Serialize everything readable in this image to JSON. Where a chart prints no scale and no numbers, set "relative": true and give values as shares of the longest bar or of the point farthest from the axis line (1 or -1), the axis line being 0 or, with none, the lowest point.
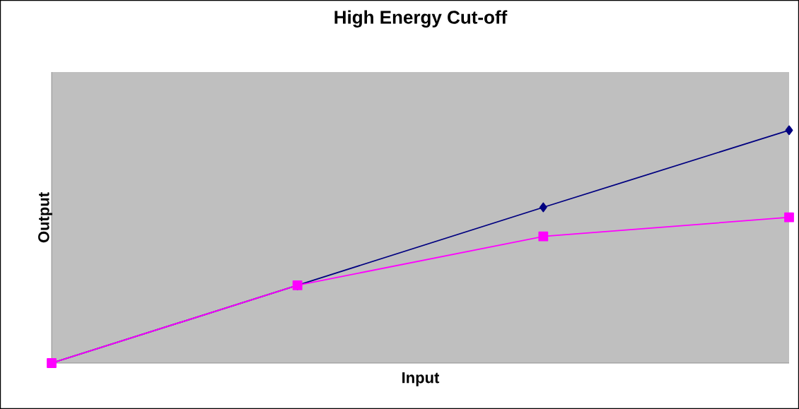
{
  "chart_data": {
    "type": "line",
    "title": "High Energy Cut-off",
    "xlabel": "Input",
    "ylabel": "Output",
    "relative": true,
    "categories": [
      null,
      null,
      null,
      null
    ],
    "series": [
      {
        "color": "#000080",
        "marker": "diamond",
        "values": [
          0,
          0.334,
          0.669,
          1
        ]
      },
      {
        "color": "#ff00ff",
        "marker": "square",
        "values": [
          0,
          0.334,
          0.544,
          0.626
        ]
      }
    ]
  }
}
